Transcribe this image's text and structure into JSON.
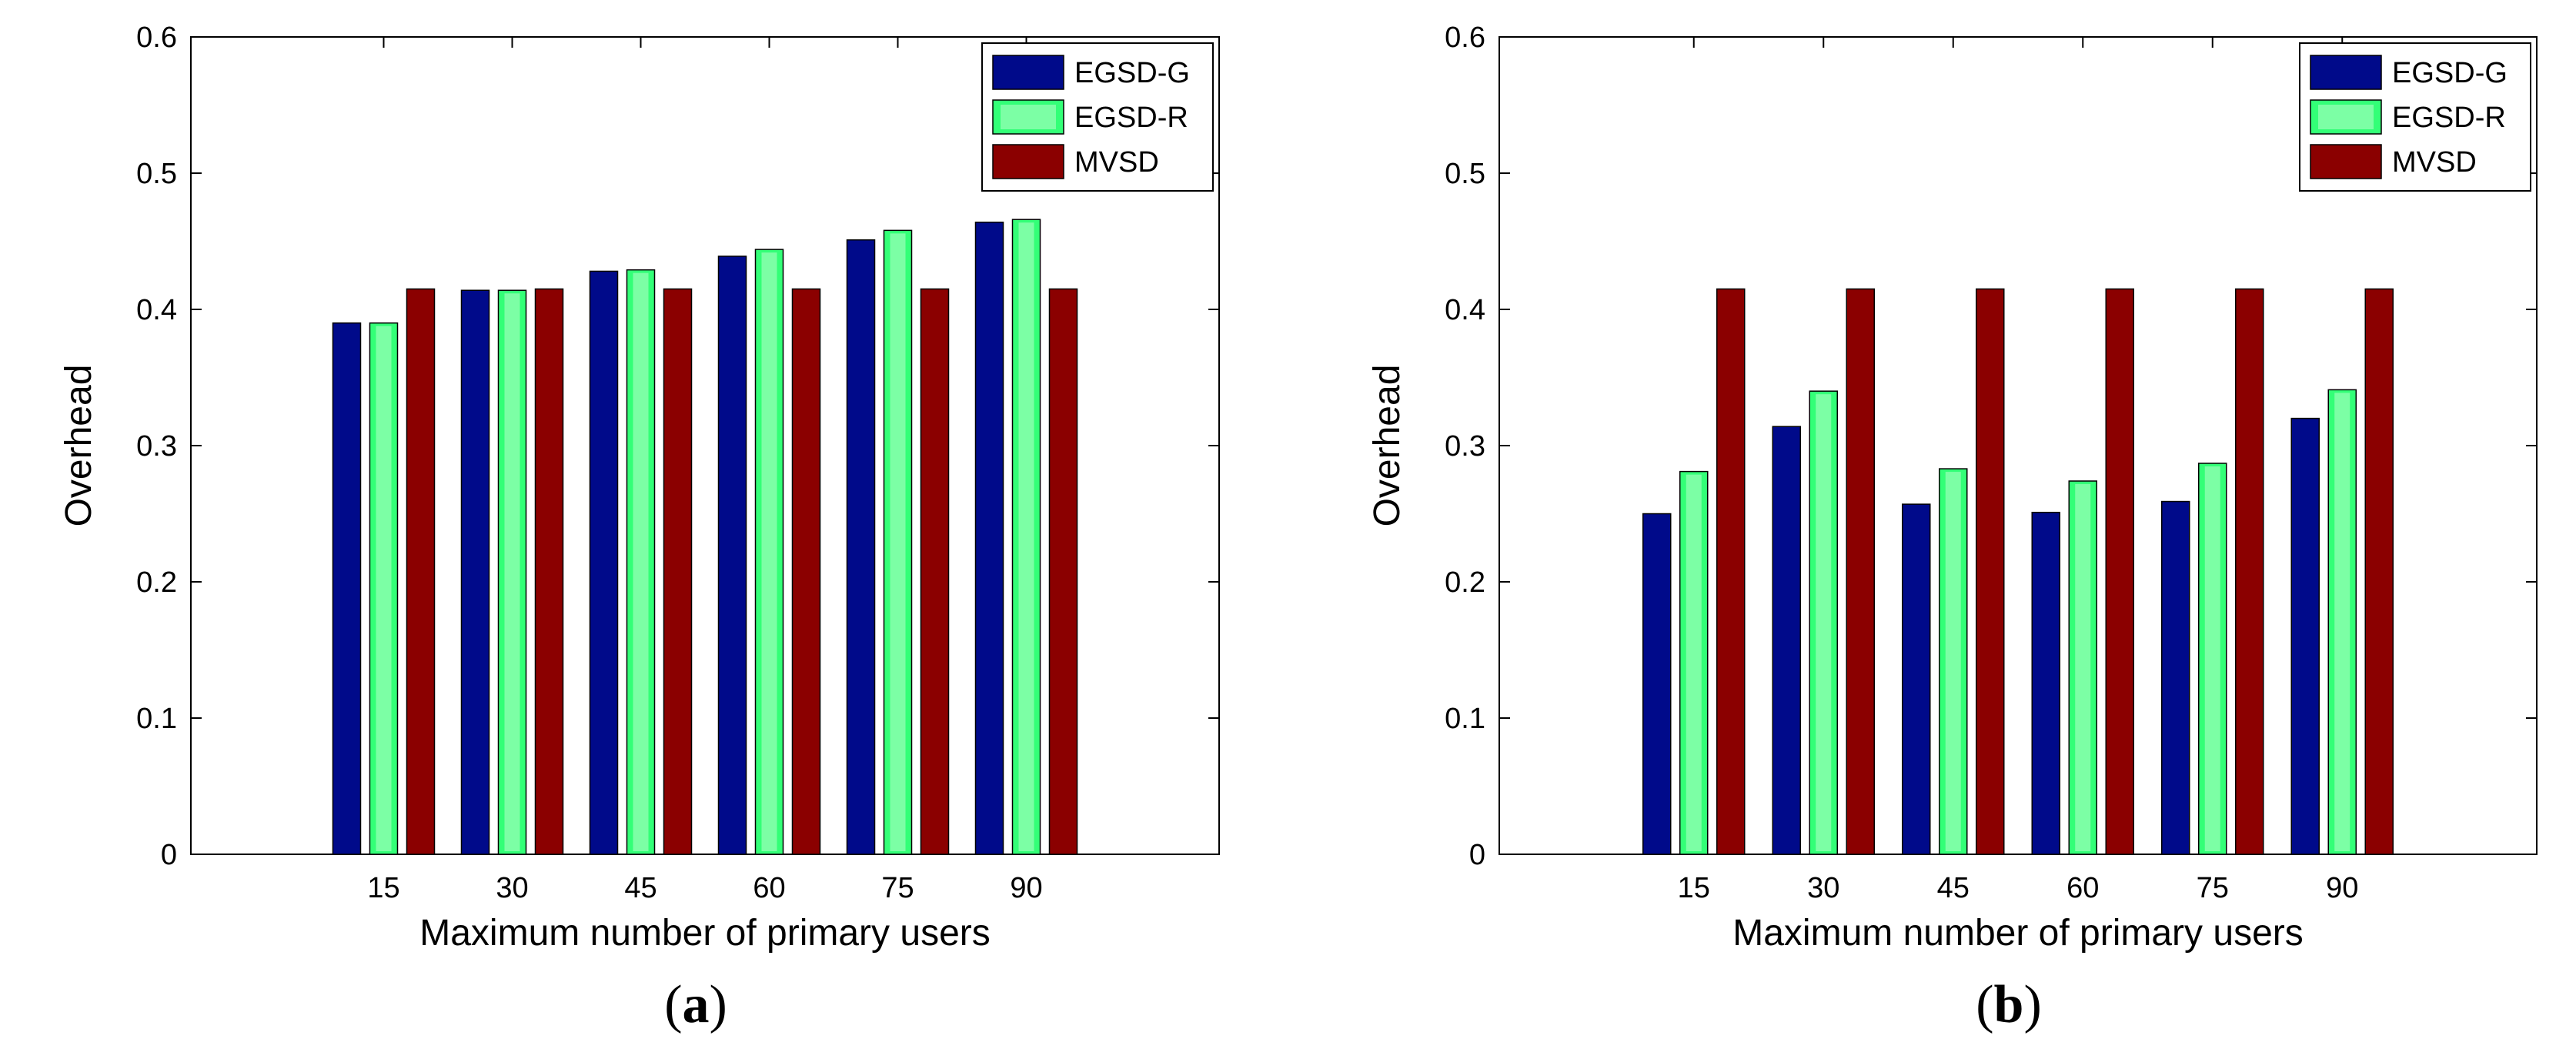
{
  "colors": {
    "egsd_g": "#000a8a",
    "egsd_r": "#33ff77",
    "egsd_r_inner": "#b8ffcc",
    "mvsd": "#8b0000",
    "axis": "#000000"
  },
  "chart_data": [
    {
      "type": "bar",
      "panel": "a",
      "caption": {
        "open": "(",
        "letter": "a",
        "close": ")"
      },
      "xlabel": "Maximum number of primary users",
      "ylabel": "Overhead",
      "ylim": [
        0,
        0.6
      ],
      "yticks": [
        "0",
        "0.1",
        "0.2",
        "0.3",
        "0.4",
        "0.5",
        "0.6"
      ],
      "categories": [
        "15",
        "30",
        "45",
        "60",
        "75",
        "90"
      ],
      "legend_position": "top-right",
      "series": [
        {
          "name": "EGSD-G",
          "key": "egsd_g",
          "values": [
            0.39,
            0.414,
            0.428,
            0.439,
            0.451,
            0.464
          ]
        },
        {
          "name": "EGSD-R",
          "key": "egsd_r",
          "values": [
            0.39,
            0.414,
            0.429,
            0.444,
            0.458,
            0.466
          ]
        },
        {
          "name": "MVSD",
          "key": "mvsd",
          "values": [
            0.415,
            0.415,
            0.415,
            0.415,
            0.415,
            0.415
          ]
        }
      ]
    },
    {
      "type": "bar",
      "panel": "b",
      "caption": {
        "open": "(",
        "letter": "b",
        "close": ")"
      },
      "xlabel": "Maximum number of primary users",
      "ylabel": "Overhead",
      "ylim": [
        0,
        0.6
      ],
      "yticks": [
        "0",
        "0.1",
        "0.2",
        "0.3",
        "0.4",
        "0.5",
        "0.6"
      ],
      "categories": [
        "15",
        "30",
        "45",
        "60",
        "75",
        "90"
      ],
      "legend_position": "top-right",
      "series": [
        {
          "name": "EGSD-G",
          "key": "egsd_g",
          "values": [
            0.25,
            0.314,
            0.257,
            0.251,
            0.259,
            0.32
          ]
        },
        {
          "name": "EGSD-R",
          "key": "egsd_r",
          "values": [
            0.281,
            0.34,
            0.283,
            0.274,
            0.287,
            0.341
          ]
        },
        {
          "name": "MVSD",
          "key": "mvsd",
          "values": [
            0.415,
            0.415,
            0.415,
            0.415,
            0.415,
            0.415
          ]
        }
      ]
    }
  ]
}
